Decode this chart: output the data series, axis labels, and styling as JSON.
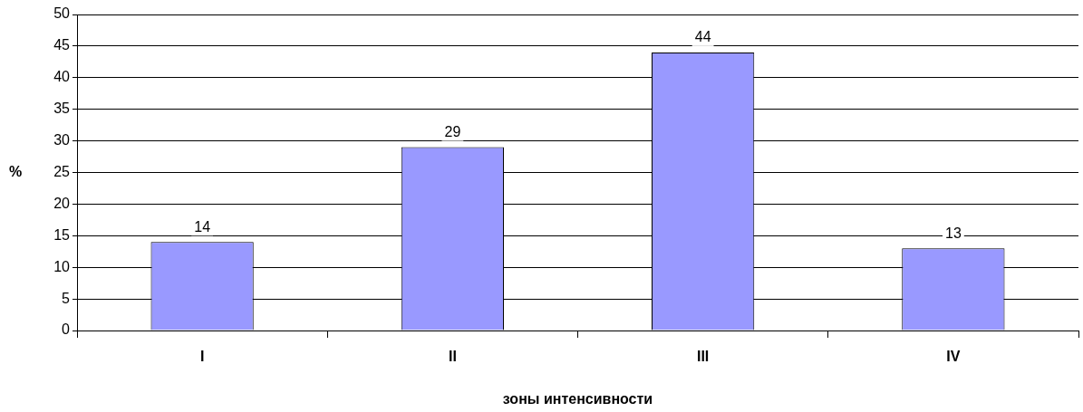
{
  "chart_data": {
    "type": "bar",
    "xlabel": "зоны интенсивности",
    "ylabel": "%",
    "categories": [
      "I",
      "II",
      "III",
      "IV"
    ],
    "values": [
      14,
      29,
      44,
      13
    ],
    "color": "#9999ff",
    "ylim": [
      0,
      50
    ],
    "yticks": [
      0,
      5,
      10,
      15,
      20,
      25,
      30,
      35,
      40,
      45,
      50
    ],
    "grid": "y",
    "data_labels": true
  }
}
